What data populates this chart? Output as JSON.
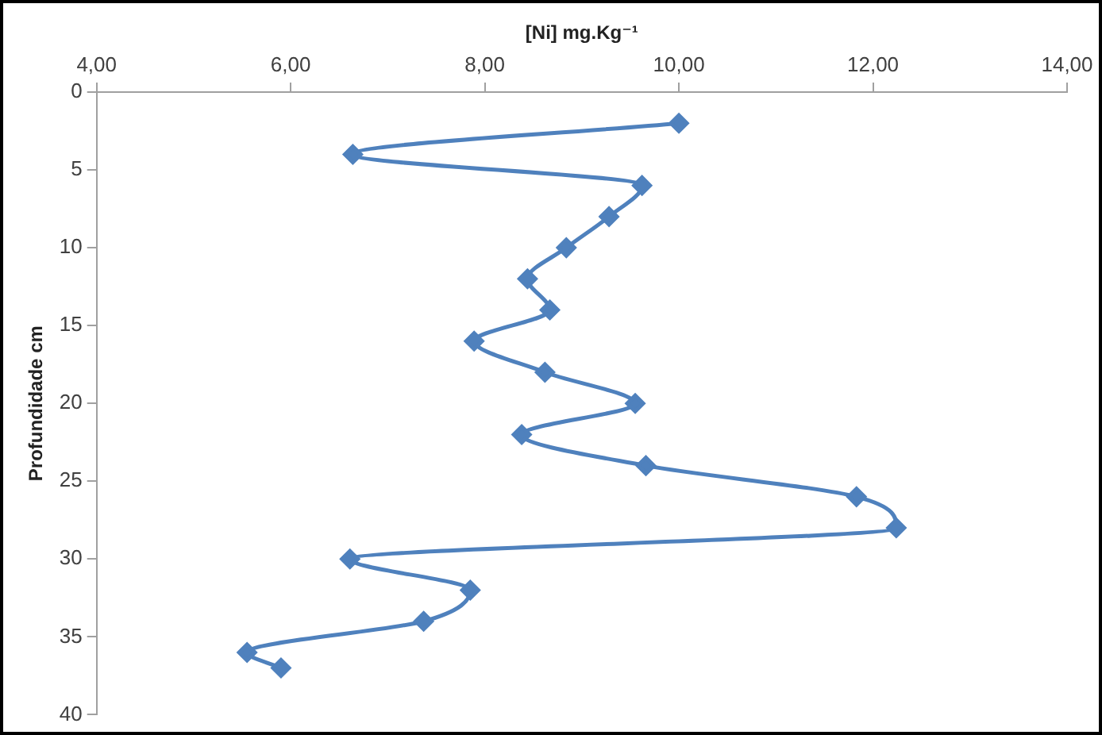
{
  "chart_data": {
    "type": "line",
    "xlabel": "[Ni] mg.Kg⁻¹",
    "ylabel": "Profundidade cm",
    "xlim": [
      4,
      14
    ],
    "xticks": [
      {
        "value": 4,
        "label": "4,00"
      },
      {
        "value": 6,
        "label": "6,00"
      },
      {
        "value": 8,
        "label": "8,00"
      },
      {
        "value": 10,
        "label": "10,00"
      },
      {
        "value": 12,
        "label": "12,00"
      },
      {
        "value": 14,
        "label": "14,00"
      }
    ],
    "ylim": [
      40,
      0
    ],
    "yticks": [
      0,
      5,
      10,
      15,
      20,
      25,
      30,
      35,
      40
    ],
    "grid": false,
    "legend": false,
    "marker": "diamond",
    "line_style": "solid",
    "series": [
      {
        "color": "#4f81bd",
        "x": [
          10.0,
          6.64,
          9.62,
          9.28,
          8.84,
          8.44,
          8.67,
          7.89,
          8.62,
          9.55,
          8.38,
          9.66,
          11.83,
          12.24,
          6.61,
          7.85,
          7.37,
          5.55,
          5.9
        ],
        "values": [
          2,
          4,
          6,
          8,
          10,
          12,
          14,
          16,
          18,
          20,
          22,
          24,
          26,
          28,
          30,
          32,
          34,
          36,
          37
        ]
      }
    ]
  }
}
